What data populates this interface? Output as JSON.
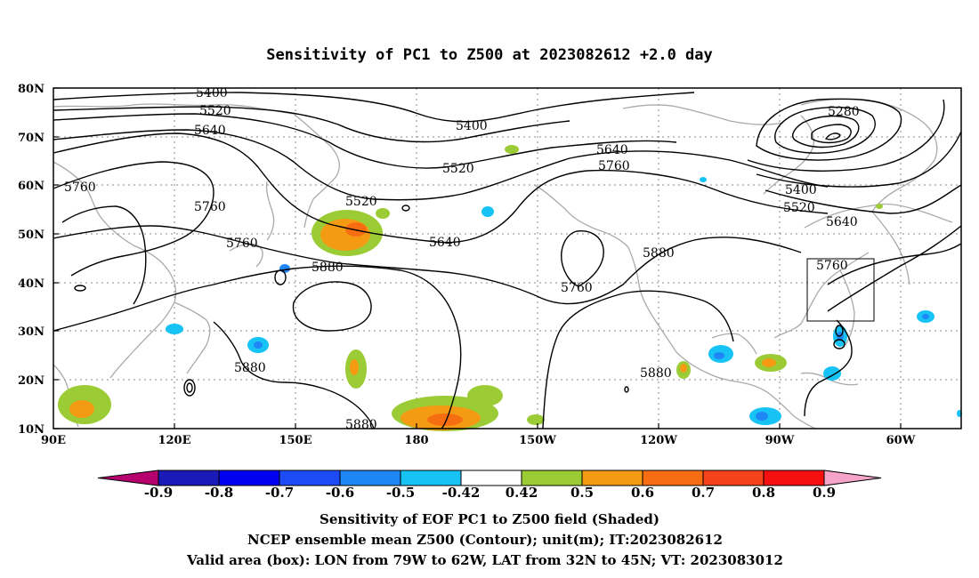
{
  "title": "Sensitivity of PC1 to Z500 at 2023082612 +2.0 day",
  "latitude_labels": [
    "80N",
    "70N",
    "60N",
    "50N",
    "40N",
    "30N",
    "20N",
    "10N"
  ],
  "longitude_labels": [
    "90E",
    "120E",
    "150E",
    "180",
    "150W",
    "120W",
    "90W",
    "60W"
  ],
  "contour_labels": [
    "5400",
    "5520",
    "5640",
    "5760",
    "5880",
    "5280"
  ],
  "colorbar": {
    "labels": [
      "-0.9",
      "-0.8",
      "-0.7",
      "-0.6",
      "-0.5",
      "-0.42",
      "0.42",
      "0.5",
      "0.6",
      "0.7",
      "0.8",
      "0.9"
    ],
    "colors": [
      "#b6006e",
      "#1a1ab8",
      "#0000f0",
      "#1d4bf5",
      "#1f86f5",
      "#17c3f5",
      "#ffffff",
      "#9ccc35",
      "#f49a13",
      "#f66d12",
      "#f5421a",
      "#f50f0f",
      "#f5a3c8"
    ]
  },
  "shading_colors": {
    "green": "#9ccc35",
    "orange": "#f49a13",
    "orange_dark": "#f66d12",
    "cyan": "#17c3f5",
    "blue": "#1f86f5"
  },
  "captions": {
    "line1": "Sensitivity of EOF PC1 to Z500 field (Shaded)",
    "line2": "NCEP ensemble mean Z500 (Contour); unit(m); IT:2023082612",
    "line3": "Valid area (box): LON from 79W to 62W, LAT from 32N to 45N; VT: 2023083012"
  },
  "valid_area": {
    "lon_min": -79,
    "lon_max": -62,
    "lat_min": 32,
    "lat_max": 45
  }
}
